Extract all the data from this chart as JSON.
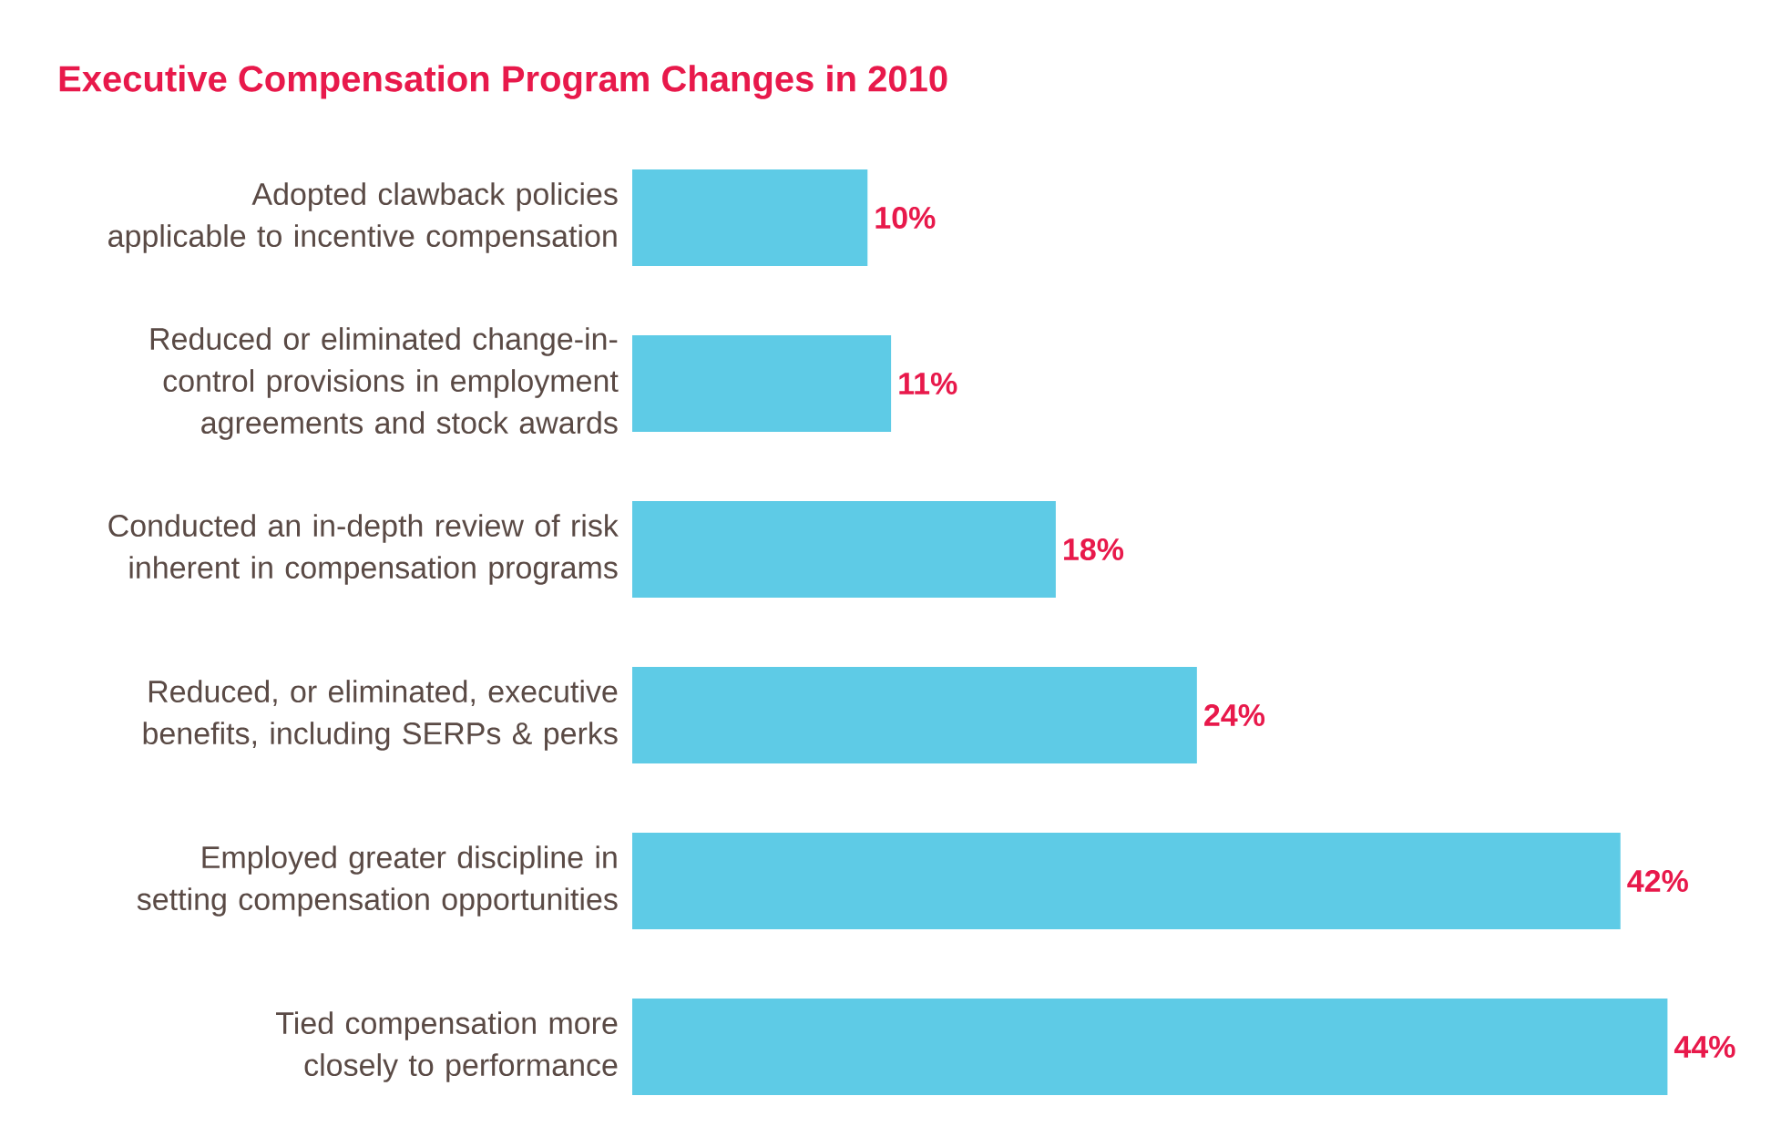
{
  "chart_data": {
    "type": "bar",
    "orientation": "horizontal",
    "title": "Executive Compensation Program Changes in 2010",
    "categories": [
      "Adopted clawback policies applicable to incentive compensation",
      "Reduced or eliminated change-in-control provisions in employment agreements and stock awards",
      "Conducted an in-depth review of risk inherent in compensation programs",
      "Reduced, or eliminated, executive benefits, including SERPs & perks",
      "Employed greater discipline in setting compensation opportunities",
      "Tied compensation more closely to performance"
    ],
    "values": [
      10,
      11,
      18,
      24,
      42,
      44
    ],
    "value_labels": [
      "10%",
      "11%",
      "18%",
      "24%",
      "42%",
      "44%"
    ],
    "color": "#5ecbe6"
  }
}
